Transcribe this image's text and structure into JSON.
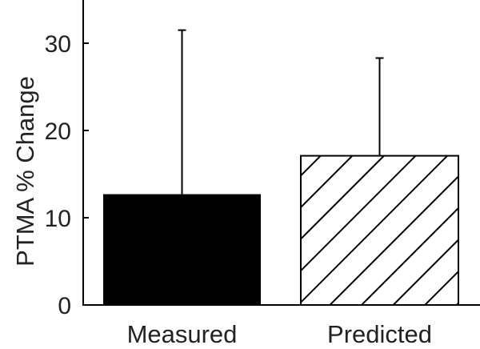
{
  "chart_data": {
    "type": "bar",
    "title": "",
    "xlabel": "",
    "ylabel": "PTMA % Change",
    "categories": [
      "Measured",
      "Predicted"
    ],
    "series": [
      {
        "values": [
          12.7,
          17.1
        ],
        "error_upper": [
          31.5,
          28.3
        ],
        "fills": [
          "solid-black",
          "diagonal-hatch"
        ]
      }
    ],
    "ylim": [
      0,
      35
    ],
    "yticks": [
      0,
      10,
      20,
      30
    ],
    "grid": false,
    "legend": "none",
    "colors": {
      "bar_solid": "#000000",
      "hatch": "#000000",
      "axis": "#000000"
    }
  }
}
